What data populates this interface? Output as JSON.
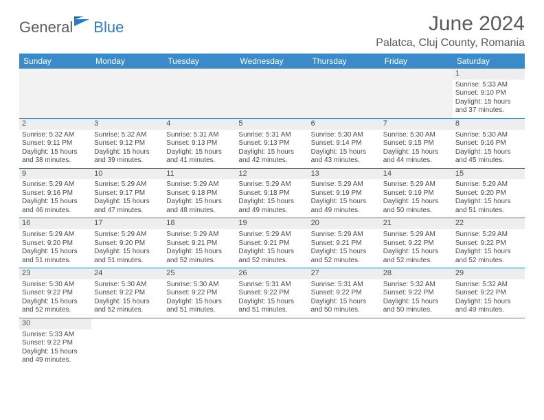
{
  "logo": {
    "part1": "General",
    "part2": "Blue"
  },
  "title": "June 2024",
  "location": "Palatca, Cluj County, Romania",
  "colors": {
    "header_bg": "#3b8bc8",
    "border": "#2f7bbf",
    "daynum_bg": "#eeeeee",
    "text": "#4a4a4a",
    "logo_gray": "#5a5a5a",
    "logo_blue": "#2f7bbf"
  },
  "weekdays": [
    "Sunday",
    "Monday",
    "Tuesday",
    "Wednesday",
    "Thursday",
    "Friday",
    "Saturday"
  ],
  "weeks": [
    [
      null,
      null,
      null,
      null,
      null,
      null,
      {
        "d": "1",
        "sr": "Sunrise: 5:33 AM",
        "ss": "Sunset: 9:10 PM",
        "dl1": "Daylight: 15 hours",
        "dl2": "and 37 minutes."
      }
    ],
    [
      {
        "d": "2",
        "sr": "Sunrise: 5:32 AM",
        "ss": "Sunset: 9:11 PM",
        "dl1": "Daylight: 15 hours",
        "dl2": "and 38 minutes."
      },
      {
        "d": "3",
        "sr": "Sunrise: 5:32 AM",
        "ss": "Sunset: 9:12 PM",
        "dl1": "Daylight: 15 hours",
        "dl2": "and 39 minutes."
      },
      {
        "d": "4",
        "sr": "Sunrise: 5:31 AM",
        "ss": "Sunset: 9:13 PM",
        "dl1": "Daylight: 15 hours",
        "dl2": "and 41 minutes."
      },
      {
        "d": "5",
        "sr": "Sunrise: 5:31 AM",
        "ss": "Sunset: 9:13 PM",
        "dl1": "Daylight: 15 hours",
        "dl2": "and 42 minutes."
      },
      {
        "d": "6",
        "sr": "Sunrise: 5:30 AM",
        "ss": "Sunset: 9:14 PM",
        "dl1": "Daylight: 15 hours",
        "dl2": "and 43 minutes."
      },
      {
        "d": "7",
        "sr": "Sunrise: 5:30 AM",
        "ss": "Sunset: 9:15 PM",
        "dl1": "Daylight: 15 hours",
        "dl2": "and 44 minutes."
      },
      {
        "d": "8",
        "sr": "Sunrise: 5:30 AM",
        "ss": "Sunset: 9:16 PM",
        "dl1": "Daylight: 15 hours",
        "dl2": "and 45 minutes."
      }
    ],
    [
      {
        "d": "9",
        "sr": "Sunrise: 5:29 AM",
        "ss": "Sunset: 9:16 PM",
        "dl1": "Daylight: 15 hours",
        "dl2": "and 46 minutes."
      },
      {
        "d": "10",
        "sr": "Sunrise: 5:29 AM",
        "ss": "Sunset: 9:17 PM",
        "dl1": "Daylight: 15 hours",
        "dl2": "and 47 minutes."
      },
      {
        "d": "11",
        "sr": "Sunrise: 5:29 AM",
        "ss": "Sunset: 9:18 PM",
        "dl1": "Daylight: 15 hours",
        "dl2": "and 48 minutes."
      },
      {
        "d": "12",
        "sr": "Sunrise: 5:29 AM",
        "ss": "Sunset: 9:18 PM",
        "dl1": "Daylight: 15 hours",
        "dl2": "and 49 minutes."
      },
      {
        "d": "13",
        "sr": "Sunrise: 5:29 AM",
        "ss": "Sunset: 9:19 PM",
        "dl1": "Daylight: 15 hours",
        "dl2": "and 49 minutes."
      },
      {
        "d": "14",
        "sr": "Sunrise: 5:29 AM",
        "ss": "Sunset: 9:19 PM",
        "dl1": "Daylight: 15 hours",
        "dl2": "and 50 minutes."
      },
      {
        "d": "15",
        "sr": "Sunrise: 5:29 AM",
        "ss": "Sunset: 9:20 PM",
        "dl1": "Daylight: 15 hours",
        "dl2": "and 51 minutes."
      }
    ],
    [
      {
        "d": "16",
        "sr": "Sunrise: 5:29 AM",
        "ss": "Sunset: 9:20 PM",
        "dl1": "Daylight: 15 hours",
        "dl2": "and 51 minutes."
      },
      {
        "d": "17",
        "sr": "Sunrise: 5:29 AM",
        "ss": "Sunset: 9:20 PM",
        "dl1": "Daylight: 15 hours",
        "dl2": "and 51 minutes."
      },
      {
        "d": "18",
        "sr": "Sunrise: 5:29 AM",
        "ss": "Sunset: 9:21 PM",
        "dl1": "Daylight: 15 hours",
        "dl2": "and 52 minutes."
      },
      {
        "d": "19",
        "sr": "Sunrise: 5:29 AM",
        "ss": "Sunset: 9:21 PM",
        "dl1": "Daylight: 15 hours",
        "dl2": "and 52 minutes."
      },
      {
        "d": "20",
        "sr": "Sunrise: 5:29 AM",
        "ss": "Sunset: 9:21 PM",
        "dl1": "Daylight: 15 hours",
        "dl2": "and 52 minutes."
      },
      {
        "d": "21",
        "sr": "Sunrise: 5:29 AM",
        "ss": "Sunset: 9:22 PM",
        "dl1": "Daylight: 15 hours",
        "dl2": "and 52 minutes."
      },
      {
        "d": "22",
        "sr": "Sunrise: 5:29 AM",
        "ss": "Sunset: 9:22 PM",
        "dl1": "Daylight: 15 hours",
        "dl2": "and 52 minutes."
      }
    ],
    [
      {
        "d": "23",
        "sr": "Sunrise: 5:30 AM",
        "ss": "Sunset: 9:22 PM",
        "dl1": "Daylight: 15 hours",
        "dl2": "and 52 minutes."
      },
      {
        "d": "24",
        "sr": "Sunrise: 5:30 AM",
        "ss": "Sunset: 9:22 PM",
        "dl1": "Daylight: 15 hours",
        "dl2": "and 52 minutes."
      },
      {
        "d": "25",
        "sr": "Sunrise: 5:30 AM",
        "ss": "Sunset: 9:22 PM",
        "dl1": "Daylight: 15 hours",
        "dl2": "and 51 minutes."
      },
      {
        "d": "26",
        "sr": "Sunrise: 5:31 AM",
        "ss": "Sunset: 9:22 PM",
        "dl1": "Daylight: 15 hours",
        "dl2": "and 51 minutes."
      },
      {
        "d": "27",
        "sr": "Sunrise: 5:31 AM",
        "ss": "Sunset: 9:22 PM",
        "dl1": "Daylight: 15 hours",
        "dl2": "and 50 minutes."
      },
      {
        "d": "28",
        "sr": "Sunrise: 5:32 AM",
        "ss": "Sunset: 9:22 PM",
        "dl1": "Daylight: 15 hours",
        "dl2": "and 50 minutes."
      },
      {
        "d": "29",
        "sr": "Sunrise: 5:32 AM",
        "ss": "Sunset: 9:22 PM",
        "dl1": "Daylight: 15 hours",
        "dl2": "and 49 minutes."
      }
    ],
    [
      {
        "d": "30",
        "sr": "Sunrise: 5:33 AM",
        "ss": "Sunset: 9:22 PM",
        "dl1": "Daylight: 15 hours",
        "dl2": "and 49 minutes."
      },
      null,
      null,
      null,
      null,
      null,
      null
    ]
  ]
}
